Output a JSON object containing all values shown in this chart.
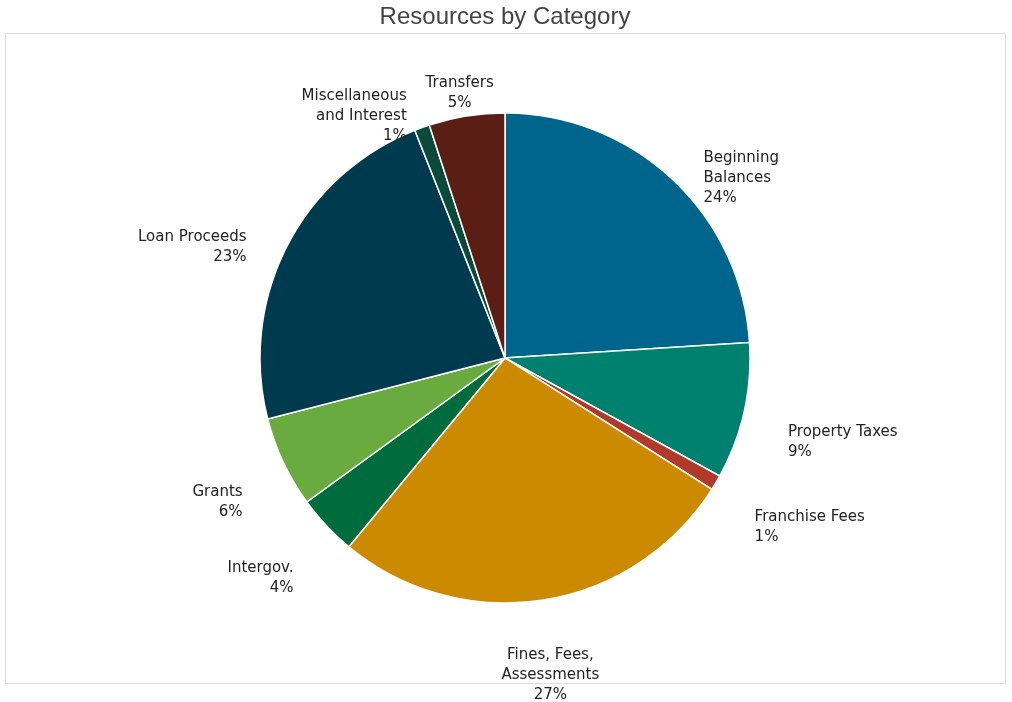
{
  "chart_data": {
    "type": "pie",
    "title": "Resources by Category",
    "categories": [
      "Beginning Balances",
      "Property Taxes",
      "Franchise Fees",
      "Fines, Fees, Assessments",
      "Intergov.",
      "Grants",
      "Loan Proceeds",
      "Miscellaneous and Interest",
      "Transfers"
    ],
    "values": [
      24,
      9,
      1,
      27,
      4,
      6,
      23,
      1,
      5
    ],
    "value_labels": [
      "24%",
      "9%",
      "1%",
      "27%",
      "4%",
      "6%",
      "23%",
      "1%",
      "5%"
    ],
    "colors": [
      "#00658c",
      "#00816f",
      "#b0392c",
      "#cc8a00",
      "#006b3c",
      "#6aab3f",
      "#003a4f",
      "#0b4a3a",
      "#5a1e14"
    ],
    "legend": false
  }
}
